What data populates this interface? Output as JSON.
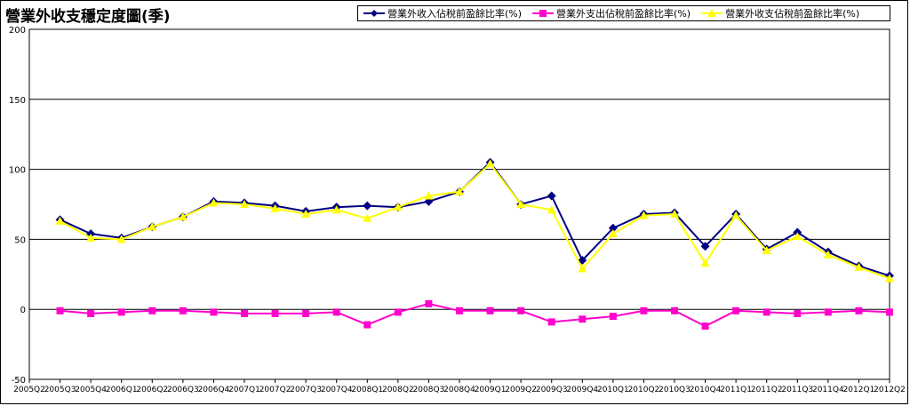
{
  "chart_data": {
    "type": "line",
    "title": "營業外收支穩定度圖(季)",
    "xlabel": "",
    "ylabel": "",
    "ylim": [
      -50,
      200
    ],
    "yticks": [
      -50,
      0,
      50,
      100,
      150,
      200
    ],
    "grid": true,
    "legend_position": "top-right",
    "x": [
      "2005Q2",
      "2005Q3",
      "2005Q4",
      "2006Q1",
      "2006Q2",
      "2006Q3",
      "2006Q4",
      "2007Q1",
      "2007Q2",
      "2007Q3",
      "2007Q4",
      "2008Q1",
      "2008Q2",
      "2008Q3",
      "2008Q4",
      "2009Q1",
      "2009Q2",
      "2009Q3",
      "2009Q4",
      "2010Q1",
      "2010Q2",
      "2010Q3",
      "2010Q4",
      "2011Q1",
      "2011Q2",
      "2011Q3",
      "2011Q4",
      "2012Q1",
      "2012Q2"
    ],
    "series": [
      {
        "name": "營業外收入佔稅前盈餘比率(%)",
        "color": "#000080",
        "marker": "diamond",
        "values": [
          null,
          64,
          54,
          51,
          59,
          66,
          77,
          76,
          74,
          70,
          73,
          74,
          73,
          77,
          84,
          105,
          75,
          81,
          35,
          58,
          68,
          69,
          45,
          68,
          43,
          55,
          41,
          31,
          24
        ]
      },
      {
        "name": "營業外支出佔稅前盈餘比率(%)",
        "color": "#ff00cc",
        "marker": "square",
        "values": [
          null,
          -1,
          -3,
          -2,
          -1,
          -1,
          -2,
          -3,
          -3,
          -3,
          -2,
          -11,
          -2,
          4,
          -1,
          -1,
          -1,
          -9,
          -7,
          -5,
          -1,
          -1,
          -12,
          -1,
          -2,
          -3,
          -2,
          -1,
          -2
        ]
      },
      {
        "name": "營業外收支佔稅前盈餘比率(%)",
        "color": "#ffff00",
        "marker": "triangle",
        "values": [
          null,
          63,
          51,
          50,
          59,
          66,
          76,
          75,
          72,
          68,
          71,
          65,
          73,
          81,
          84,
          104,
          75,
          71,
          29,
          54,
          67,
          68,
          33,
          67,
          42,
          52,
          39,
          30,
          22
        ]
      }
    ]
  }
}
